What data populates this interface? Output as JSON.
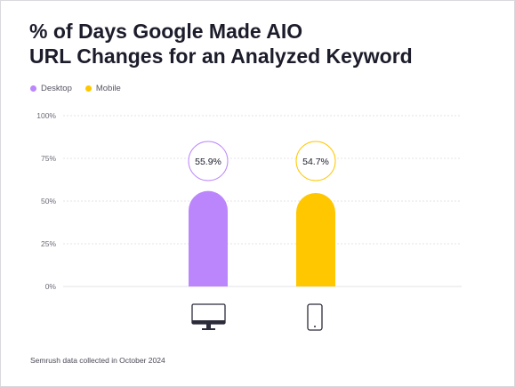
{
  "title_lines": [
    "% of Days Google Made AIO",
    "URL Changes for an Analyzed Keyword"
  ],
  "footnote": "Semrush data collected in October 2024",
  "colors": {
    "desktop": "#bb86fc",
    "mobile": "#ffc700",
    "grid": "#e3e3e8",
    "tick_text": "#6b6b78",
    "icon": "#2b2b3a"
  },
  "chart_data": {
    "type": "bar",
    "title": "% of Days Google Made AIO URL Changes for an Analyzed Keyword",
    "categories": [
      "Desktop",
      "Mobile"
    ],
    "category_icons": [
      "desktop-monitor-icon",
      "mobile-phone-icon"
    ],
    "series": [
      {
        "name": "Desktop",
        "values": [
          55.9,
          null
        ],
        "color": "#bb86fc"
      },
      {
        "name": "Mobile",
        "values": [
          null,
          54.7
        ],
        "color": "#ffc700"
      }
    ],
    "values": [
      55.9,
      54.7
    ],
    "value_labels": [
      "55.9%",
      "54.7%"
    ],
    "ylim": [
      0,
      100
    ],
    "yticks": [
      0,
      25,
      50,
      75,
      100
    ],
    "ytick_labels": [
      "0%",
      "25%",
      "50%",
      "75%",
      "100%"
    ],
    "grid": true,
    "legend_position": "top-left",
    "xlabel": "",
    "ylabel": ""
  }
}
